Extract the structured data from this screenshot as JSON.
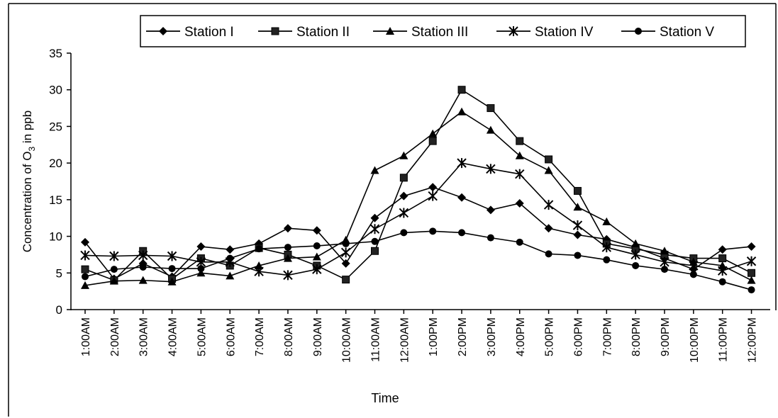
{
  "chart_data": {
    "type": "line",
    "title": "",
    "xlabel": "Time",
    "ylabel": "Concentration of O3 in ppb",
    "ylabel_parts": {
      "pre": "Concentration of O",
      "sub": "3",
      "post": " in ppb"
    },
    "ylim": [
      0,
      35
    ],
    "yticks": [
      0,
      5,
      10,
      15,
      20,
      25,
      30,
      35
    ],
    "grid": false,
    "legend_position": "top",
    "categories": [
      "1:00AM",
      "2:00AM",
      "3:00AM",
      "4:00AM",
      "5:00AM",
      "6:00AM",
      "7:00AM",
      "8:00AM",
      "9:00AM",
      "10:00AM",
      "11:00AM",
      "12:00AM",
      "1:00PM",
      "2:00PM",
      "3:00PM",
      "4:00PM",
      "5:00PM",
      "6:00PM",
      "7:00PM",
      "8:00PM",
      "9:00PM",
      "10:00PM",
      "11:00PM",
      "12:00PM"
    ],
    "series": [
      {
        "name": "Station I",
        "marker": "diamond",
        "values": [
          9.2,
          4.2,
          6.3,
          4.5,
          8.6,
          8.2,
          9.0,
          11.1,
          10.8,
          6.3,
          12.5,
          15.5,
          16.7,
          15.3,
          13.6,
          14.5,
          11.1,
          10.2,
          9.6,
          8.5,
          7.0,
          5.5,
          8.2,
          8.6
        ]
      },
      {
        "name": "Station II",
        "marker": "square",
        "values": [
          5.5,
          4.0,
          8.0,
          4.2,
          7.0,
          6.0,
          8.4,
          7.5,
          6.0,
          4.1,
          8.0,
          18.0,
          23.0,
          30.0,
          27.5,
          23.0,
          20.5,
          16.2,
          9.0,
          8.3,
          7.5,
          7.0,
          7.0,
          5.0
        ]
      },
      {
        "name": "Station III",
        "marker": "triangle",
        "values": [
          3.3,
          3.9,
          4.0,
          3.8,
          5.0,
          4.6,
          6.0,
          7.0,
          7.2,
          9.5,
          19.0,
          21.0,
          24.0,
          27.0,
          24.5,
          21.0,
          19.0,
          14.0,
          12.0,
          9.0,
          8.0,
          6.5,
          6.0,
          4.0
        ]
      },
      {
        "name": "Station IV",
        "marker": "asterisk",
        "values": [
          7.4,
          7.3,
          7.4,
          7.3,
          6.5,
          6.5,
          5.2,
          4.7,
          5.5,
          7.8,
          11.0,
          13.2,
          15.5,
          20.0,
          19.2,
          18.5,
          14.3,
          11.5,
          8.5,
          7.5,
          6.5,
          6.0,
          5.3,
          6.6
        ]
      },
      {
        "name": "Station V",
        "marker": "circle",
        "values": [
          4.5,
          5.5,
          5.8,
          5.6,
          5.6,
          7.0,
          8.3,
          8.5,
          8.7,
          9.0,
          9.3,
          10.5,
          10.7,
          10.5,
          9.8,
          9.2,
          7.6,
          7.4,
          6.8,
          6.0,
          5.5,
          4.8,
          3.8,
          2.7
        ]
      }
    ]
  }
}
